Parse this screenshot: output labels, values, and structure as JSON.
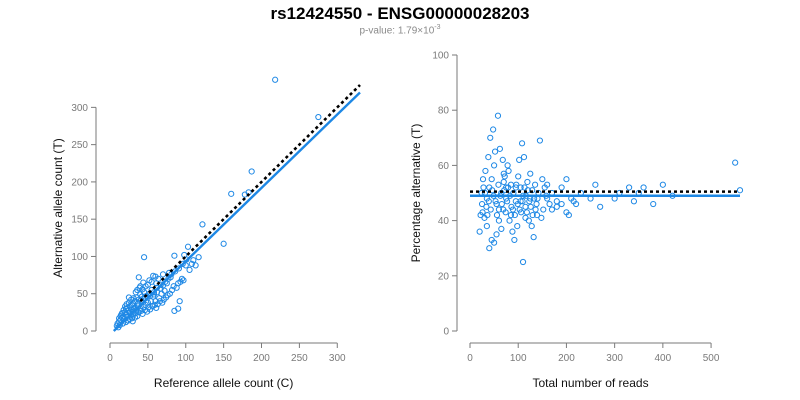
{
  "title": "rs12424550 - ENSG00000028203",
  "subtitle": {
    "prefix": "p-value: 1.79×10",
    "exponent": "-3"
  },
  "colors": {
    "point": "#1e88e5",
    "fit_line": "#1e88e5",
    "reference_line": "#000000",
    "tick": "#7a7a7a"
  },
  "chart_data": [
    {
      "type": "scatter",
      "xlabel": "Reference allele count (C)",
      "ylabel": "Alternative allele count (T)",
      "xlim": [
        0,
        330
      ],
      "ylim": [
        0,
        330
      ],
      "xticks": [
        0,
        50,
        100,
        150,
        200,
        250,
        300
      ],
      "yticks": [
        0,
        50,
        100,
        150,
        200,
        250,
        300
      ],
      "fit_line": {
        "from": [
          5,
          0
        ],
        "to": [
          330,
          320
        ]
      },
      "reference_line": {
        "from": [
          40,
          40
        ],
        "to": [
          330,
          330
        ]
      },
      "points": [
        [
          218,
          337
        ],
        [
          275,
          287
        ],
        [
          187,
          214
        ],
        [
          183,
          186
        ],
        [
          178,
          183
        ],
        [
          160,
          184
        ],
        [
          122,
          143
        ],
        [
          150,
          117
        ],
        [
          103,
          113
        ],
        [
          98,
          102
        ],
        [
          85,
          101
        ],
        [
          117,
          99
        ],
        [
          113,
          88
        ],
        [
          100,
          88
        ],
        [
          45,
          99
        ],
        [
          75,
          64
        ],
        [
          78,
          78
        ],
        [
          80,
          72
        ],
        [
          70,
          76
        ],
        [
          64,
          70
        ],
        [
          60,
          73
        ],
        [
          55,
          66
        ],
        [
          50,
          62
        ],
        [
          44,
          65
        ],
        [
          40,
          60
        ],
        [
          38,
          72
        ],
        [
          62,
          58
        ],
        [
          58,
          52
        ],
        [
          55,
          55
        ],
        [
          52,
          50
        ],
        [
          48,
          47
        ],
        [
          45,
          52
        ],
        [
          42,
          46
        ],
        [
          40,
          49
        ],
        [
          38,
          42
        ],
        [
          35,
          45
        ],
        [
          33,
          40
        ],
        [
          30,
          37
        ],
        [
          28,
          42
        ],
        [
          25,
          38
        ],
        [
          65,
          44
        ],
        [
          68,
          50
        ],
        [
          72,
          54
        ],
        [
          60,
          40
        ],
        [
          57,
          46
        ],
        [
          54,
          40
        ],
        [
          50,
          38
        ],
        [
          47,
          35
        ],
        [
          44,
          32
        ],
        [
          42,
          38
        ],
        [
          40,
          30
        ],
        [
          37,
          33
        ],
        [
          35,
          28
        ],
        [
          32,
          31
        ],
        [
          30,
          26
        ],
        [
          28,
          29
        ],
        [
          26,
          24
        ],
        [
          24,
          27
        ],
        [
          22,
          22
        ],
        [
          20,
          25
        ],
        [
          18,
          20
        ],
        [
          16,
          18
        ],
        [
          14,
          15
        ],
        [
          12,
          13
        ],
        [
          10,
          10
        ],
        [
          15,
          22
        ],
        [
          19,
          16
        ],
        [
          23,
          19
        ],
        [
          27,
          21
        ],
        [
          29,
          17
        ],
        [
          31,
          22
        ],
        [
          34,
          24
        ],
        [
          36,
          20
        ],
        [
          38,
          25
        ],
        [
          41,
          27
        ],
        [
          43,
          23
        ],
        [
          46,
          28
        ],
        [
          49,
          26
        ],
        [
          51,
          32
        ],
        [
          53,
          29
        ],
        [
          56,
          33
        ],
        [
          59,
          35
        ],
        [
          61,
          31
        ],
        [
          63,
          36
        ],
        [
          66,
          40
        ],
        [
          69,
          38
        ],
        [
          71,
          42
        ],
        [
          74,
          45
        ],
        [
          76,
          48
        ],
        [
          79,
          50
        ],
        [
          82,
          55
        ],
        [
          84,
          60
        ],
        [
          88,
          58
        ],
        [
          90,
          64
        ],
        [
          93,
          66
        ],
        [
          95,
          70
        ],
        [
          97,
          68
        ],
        [
          105,
          82
        ],
        [
          108,
          90
        ],
        [
          110,
          95
        ],
        [
          85,
          27
        ],
        [
          90,
          30
        ],
        [
          92,
          40
        ],
        [
          21,
          12
        ],
        [
          24,
          14
        ],
        [
          26,
          16
        ],
        [
          30,
          13
        ],
        [
          33,
          18
        ],
        [
          17,
          10
        ],
        [
          13,
          8
        ],
        [
          11,
          5
        ],
        [
          9,
          7
        ],
        [
          20,
          33
        ],
        [
          22,
          36
        ],
        [
          25,
          45
        ],
        [
          27,
          34
        ],
        [
          31,
          44
        ],
        [
          34,
          52
        ],
        [
          36,
          55
        ],
        [
          39,
          58
        ],
        [
          43,
          56
        ],
        [
          47,
          60
        ],
        [
          52,
          68
        ],
        [
          57,
          74
        ],
        [
          61,
          64
        ],
        [
          67,
          62
        ],
        [
          73,
          66
        ],
        [
          77,
          70
        ],
        [
          81,
          76
        ],
        [
          86,
          80
        ],
        [
          91,
          84
        ],
        [
          96,
          90
        ],
        [
          101,
          96
        ],
        [
          18,
          28
        ],
        [
          21,
          30
        ],
        [
          16,
          24
        ],
        [
          14,
          20
        ],
        [
          12,
          17
        ],
        [
          23,
          31
        ],
        [
          29,
          35
        ],
        [
          32,
          29
        ],
        [
          37,
          37
        ],
        [
          41,
          41
        ],
        [
          46,
          44
        ],
        [
          53,
          47
        ],
        [
          58,
          49
        ],
        [
          62,
          52
        ],
        [
          67,
          57
        ],
        [
          70,
          61
        ]
      ]
    },
    {
      "type": "scatter",
      "xlabel": "Total number of reads",
      "ylabel": "Percentage alternative (T)",
      "xlim": [
        0,
        560
      ],
      "ylim": [
        0,
        100
      ],
      "xticks": [
        0,
        100,
        200,
        300,
        400,
        500
      ],
      "yticks": [
        0,
        20,
        40,
        60,
        80,
        100
      ],
      "fit_line": {
        "from": [
          0,
          49
        ],
        "to": [
          560,
          49
        ]
      },
      "reference_line": {
        "from": [
          0,
          50.5
        ],
        "to": [
          560,
          50.5
        ]
      },
      "points": [
        [
          30,
          41
        ],
        [
          35,
          48
        ],
        [
          40,
          52
        ],
        [
          45,
          55
        ],
        [
          50,
          60
        ],
        [
          55,
          46
        ],
        [
          60,
          44
        ],
        [
          65,
          50
        ],
        [
          70,
          54
        ],
        [
          75,
          48
        ],
        [
          80,
          58
        ],
        [
          85,
          53
        ],
        [
          90,
          50
        ],
        [
          95,
          47
        ],
        [
          100,
          56
        ],
        [
          105,
          52
        ],
        [
          110,
          49
        ],
        [
          115,
          45
        ],
        [
          120,
          51
        ],
        [
          125,
          57
        ],
        [
          130,
          42
        ],
        [
          135,
          53
        ],
        [
          140,
          48
        ],
        [
          145,
          69
        ],
        [
          150,
          55
        ],
        [
          155,
          52
        ],
        [
          160,
          48
        ],
        [
          165,
          46
        ],
        [
          170,
          50
        ],
        [
          180,
          47
        ],
        [
          190,
          52
        ],
        [
          200,
          55
        ],
        [
          210,
          48
        ],
        [
          220,
          46
        ],
        [
          230,
          50
        ],
        [
          250,
          48
        ],
        [
          270,
          45
        ],
        [
          300,
          48
        ],
        [
          330,
          52
        ],
        [
          350,
          50
        ],
        [
          360,
          52
        ],
        [
          400,
          53
        ],
        [
          550,
          61
        ],
        [
          560,
          51
        ],
        [
          20,
          36
        ],
        [
          22,
          42
        ],
        [
          25,
          46
        ],
        [
          28,
          52
        ],
        [
          32,
          58
        ],
        [
          38,
          63
        ],
        [
          42,
          70
        ],
        [
          48,
          73
        ],
        [
          52,
          65
        ],
        [
          58,
          78
        ],
        [
          62,
          66
        ],
        [
          68,
          62
        ],
        [
          72,
          56
        ],
        [
          78,
          60
        ],
        [
          82,
          40
        ],
        [
          88,
          36
        ],
        [
          92,
          33
        ],
        [
          98,
          38
        ],
        [
          102,
          62
        ],
        [
          108,
          68
        ],
        [
          112,
          63
        ],
        [
          118,
          43
        ],
        [
          122,
          40
        ],
        [
          128,
          38
        ],
        [
          132,
          34
        ],
        [
          138,
          46
        ],
        [
          142,
          50
        ],
        [
          148,
          41
        ],
        [
          152,
          44
        ],
        [
          158,
          49
        ],
        [
          50,
          32
        ],
        [
          55,
          35
        ],
        [
          40,
          30
        ],
        [
          45,
          33
        ],
        [
          60,
          40
        ],
        [
          65,
          37
        ],
        [
          35,
          38
        ],
        [
          26,
          43
        ],
        [
          24,
          50
        ],
        [
          27,
          55
        ],
        [
          31,
          50
        ],
        [
          34,
          45
        ],
        [
          36,
          42
        ],
        [
          39,
          47
        ],
        [
          43,
          44
        ],
        [
          46,
          51
        ],
        [
          49,
          49
        ],
        [
          53,
          47
        ],
        [
          56,
          42
        ],
        [
          59,
          53
        ],
        [
          63,
          49
        ],
        [
          66,
          46
        ],
        [
          69,
          44
        ],
        [
          71,
          51
        ],
        [
          74,
          43
        ],
        [
          77,
          47
        ],
        [
          79,
          52
        ],
        [
          83,
          49
        ],
        [
          86,
          45
        ],
        [
          89,
          44
        ],
        [
          93,
          42
        ],
        [
          96,
          53
        ],
        [
          99,
          46
        ],
        [
          103,
          44
        ],
        [
          106,
          43
        ],
        [
          109,
          47
        ],
        [
          113,
          52
        ],
        [
          116,
          49
        ],
        [
          119,
          54
        ],
        [
          123,
          47
        ],
        [
          126,
          45
        ],
        [
          129,
          51
        ],
        [
          133,
          48
        ],
        [
          136,
          44
        ],
        [
          139,
          42
        ],
        [
          110,
          25
        ],
        [
          180,
          45
        ],
        [
          200,
          43
        ],
        [
          205,
          42
        ],
        [
          215,
          47
        ],
        [
          260,
          53
        ],
        [
          310,
          50
        ],
        [
          340,
          47
        ],
        [
          380,
          46
        ],
        [
          420,
          49
        ],
        [
          70,
          57
        ],
        [
          75,
          52
        ],
        [
          85,
          42
        ],
        [
          95,
          52
        ],
        [
          105,
          47
        ],
        [
          115,
          41
        ],
        [
          125,
          48
        ],
        [
          160,
          53
        ],
        [
          170,
          44
        ],
        [
          190,
          46
        ]
      ]
    }
  ]
}
